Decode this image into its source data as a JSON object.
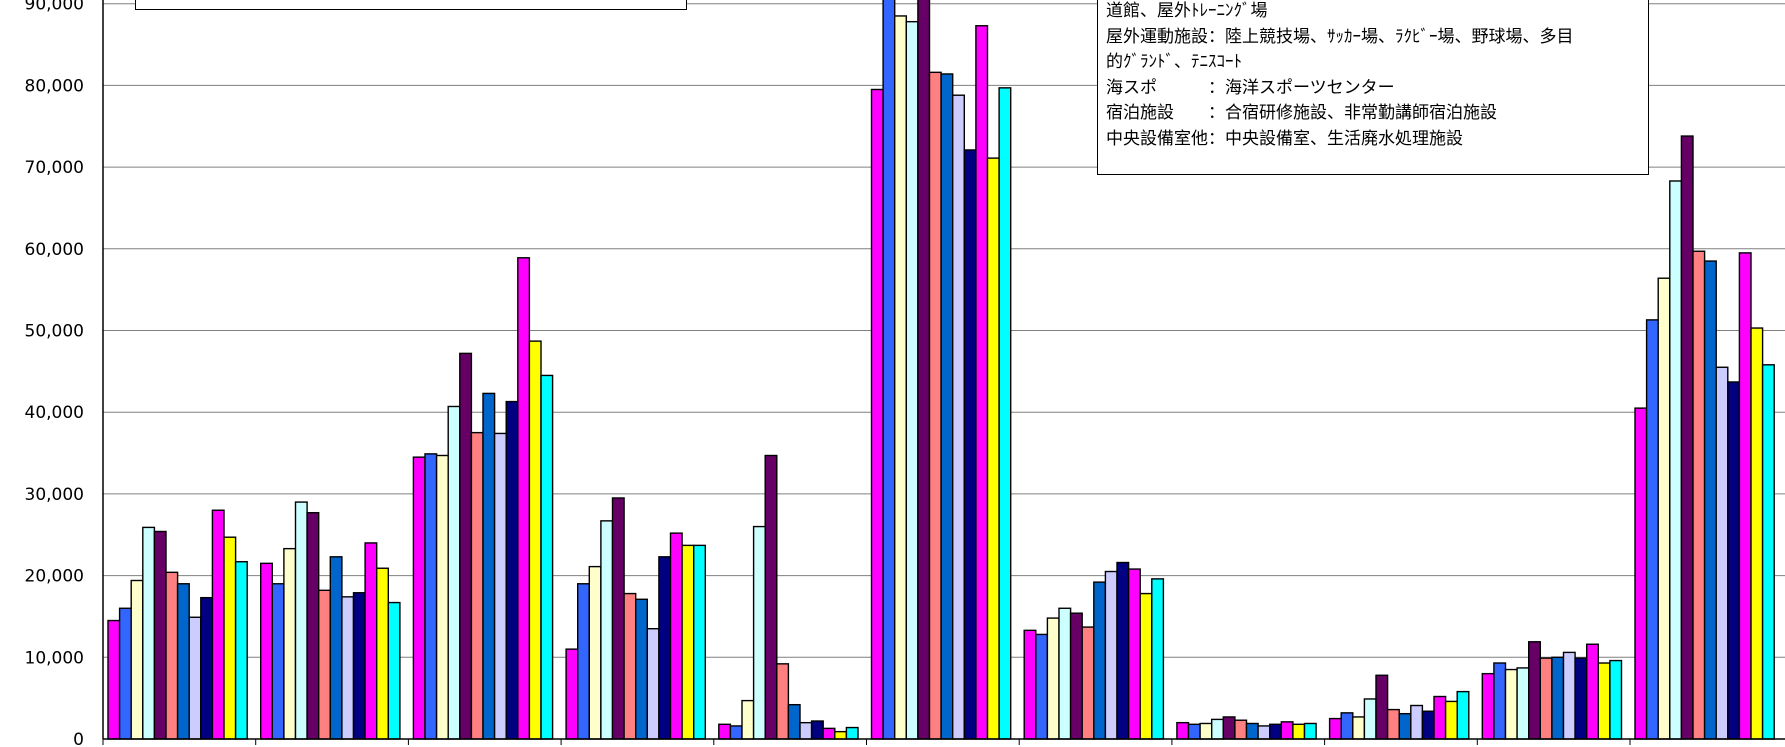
{
  "chart_data": {
    "type": "bar",
    "ylim": [
      0,
      90000
    ],
    "y_ticks": [
      "0",
      "10,000",
      "20,000",
      "30,000",
      "40,000",
      "50,000",
      "60,000",
      "70,000",
      "80,000",
      "90,000"
    ],
    "grid": true,
    "series_colors": [
      "#ff00ff",
      "#3366ff",
      "#ffffcc",
      "#ccffff",
      "#660066",
      "#ff8080",
      "#0066cc",
      "#ccccff",
      "#000080",
      "#ff00ff",
      "#ffff00",
      "#00ffff"
    ],
    "groups": [
      [
        14500,
        16000,
        19400,
        25900,
        25400,
        20400,
        19000,
        14900,
        17300,
        28000,
        24700,
        21700
      ],
      [
        21500,
        19000,
        23300,
        29000,
        27700,
        18200,
        22300,
        17400,
        17900,
        24000,
        20900,
        16700
      ],
      [
        34500,
        34900,
        34700,
        40700,
        47200,
        37500,
        42300,
        37400,
        41300,
        58900,
        48700,
        44500
      ],
      [
        11000,
        19000,
        21100,
        26700,
        29500,
        17800,
        17100,
        13500,
        22300,
        25200,
        23700,
        23700
      ],
      [
        1800,
        1600,
        4700,
        26000,
        34700,
        9200,
        4200,
        2000,
        2200,
        1300,
        900,
        1400
      ],
      [
        79500,
        92500,
        88500,
        87800,
        91500,
        81600,
        81400,
        78800,
        72100,
        87300,
        71100,
        79700
      ],
      [
        13300,
        12800,
        14800,
        16000,
        15400,
        13700,
        19200,
        20500,
        21600,
        20800,
        17800,
        19600
      ],
      [
        2000,
        1800,
        1900,
        2400,
        2700,
        2300,
        1900,
        1600,
        1800,
        2100,
        1800,
        1900
      ],
      [
        2500,
        3200,
        2700,
        4900,
        7800,
        3600,
        3100,
        4100,
        3400,
        5200,
        4600,
        5800
      ],
      [
        8000,
        9300,
        8500,
        8700,
        11900,
        9900,
        10000,
        10600,
        9900,
        11600,
        9300,
        9600
      ],
      [
        40500,
        51300,
        56400,
        68300,
        73800,
        59700,
        58500,
        45500,
        43700,
        59500,
        50300,
        45800
      ]
    ]
  },
  "notes": [
    "道館、屋外ﾄﾚｰﾆﾝｸﾞ場",
    "屋外運動施設：陸上競技場、ｻｯｶｰ場、ﾗｸﾋﾞｰ場、野球場、多目",
    "的ｸﾞﾗﾝﾄﾞ、ﾃﾆｽｺｰﾄ",
    "海スポ　　　：海洋スポーツセンター",
    "宿泊施設　　：合宿研修施設、非常勤講師宿泊施設",
    "中央設備室他：中央設備室、生活廃水処理施設"
  ]
}
